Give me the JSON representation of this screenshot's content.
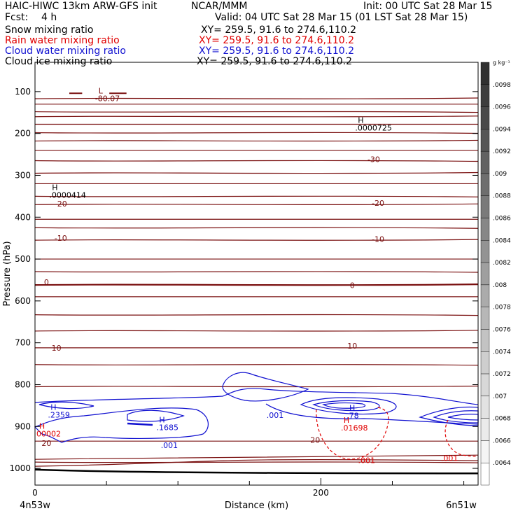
{
  "header": {
    "model": "HAIC-HIWC 13km ARW-GFS init",
    "org": "NCAR/MMM",
    "init": "Init: 00 UTC Sat 28 Mar 15",
    "fcst_label": "Fcst:",
    "fcst_value": "4 h",
    "valid": "Valid: 04 UTC Sat 28 Mar 15 (01 LST Sat 28 Mar 15)"
  },
  "fields": [
    {
      "name": "Snow mixing ratio",
      "xy": "XY= 259.5, 91.6 to 274.6,110.2",
      "color": "#000000"
    },
    {
      "name": "Rain water mixing ratio",
      "xy": "XY= 259.5, 91.6 to 274.6,110.2",
      "color": "#e00000"
    },
    {
      "name": "Cloud water mixing ratio",
      "xy": "XY= 259.5, 91.6 to 274.6,110.2",
      "color": "#1010d0"
    },
    {
      "name": "Cloud ice mixing ratio",
      "xy": "XY= 259.5, 91.6 to 274.6,110.2",
      "color": "#000000"
    }
  ],
  "chart_data": {
    "type": "contour",
    "xlabel": "Distance (km)",
    "ylabel": "Pressure (hPa)",
    "x_ticks": [
      0,
      200
    ],
    "x_minor_step": 50,
    "xlim": [
      0,
      310
    ],
    "y_ticks": [
      100,
      200,
      300,
      400,
      500,
      600,
      700,
      800,
      900,
      1000
    ],
    "ylim": [
      1040,
      30
    ],
    "x_endpoints": {
      "left": "4n53w",
      "right": "6n51w"
    },
    "temperature_contours": {
      "color": "#7a1010",
      "levels": [
        {
          "p": 117,
          "label": ""
        },
        {
          "p": 130,
          "label": ""
        },
        {
          "p": 148,
          "label": ""
        },
        {
          "p": 160,
          "label": ""
        },
        {
          "p": 178,
          "label": ""
        },
        {
          "p": 198,
          "label": ""
        },
        {
          "p": 218,
          "label": ""
        },
        {
          "p": 240,
          "label": ""
        },
        {
          "p": 265,
          "label": "-30"
        },
        {
          "p": 295,
          "label": ""
        },
        {
          "p": 320,
          "label": ""
        },
        {
          "p": 350,
          "label": ""
        },
        {
          "p": 370,
          "label": "-20"
        },
        {
          "p": 405,
          "label": ""
        },
        {
          "p": 425,
          "label": ""
        },
        {
          "p": 455,
          "label": "-10"
        },
        {
          "p": 500,
          "label": ""
        },
        {
          "p": 530,
          "label": ""
        },
        {
          "p": 562,
          "label": "0"
        },
        {
          "p": 590,
          "label": ""
        },
        {
          "p": 633,
          "label": ""
        },
        {
          "p": 672,
          "label": ""
        },
        {
          "p": 712,
          "label": "10"
        },
        {
          "p": 752,
          "label": ""
        },
        {
          "p": 805,
          "label": ""
        },
        {
          "p": 935,
          "label": "20"
        },
        {
          "p": 985,
          "label": ""
        }
      ],
      "labels": [
        {
          "text": "-30",
          "x": 237,
          "p": 262
        },
        {
          "text": "-20",
          "x": 18,
          "p": 368
        },
        {
          "text": "-20",
          "x": 240,
          "p": 366
        },
        {
          "text": "-10",
          "x": 18,
          "p": 450
        },
        {
          "text": "-10",
          "x": 240,
          "p": 452
        },
        {
          "text": "0",
          "x": 8,
          "p": 555
        },
        {
          "text": "0",
          "x": 222,
          "p": 563
        },
        {
          "text": "10",
          "x": 15,
          "p": 712
        },
        {
          "text": "10",
          "x": 222,
          "p": 707
        },
        {
          "text": "20",
          "x": 8,
          "p": 940
        },
        {
          "text": "20",
          "x": 196,
          "p": 932
        }
      ]
    },
    "cloud_water": {
      "color": "#1010d0",
      "labels": [
        {
          "text": ".001",
          "x": 168,
          "p": 873
        },
        {
          "text": ".001",
          "x": 94,
          "p": 945
        }
      ]
    },
    "rain_water": {
      "color": "#e00000",
      "labels": [
        {
          "text": ".001",
          "x": 232,
          "p": 981
        },
        {
          "text": ".001",
          "x": 290,
          "p": 976
        }
      ]
    },
    "extrema": [
      {
        "kind": "L",
        "value": "-80.07",
        "x": 42,
        "p": 104,
        "color": "#7a1010"
      },
      {
        "kind": "H",
        "value": ".0000725",
        "x": 224,
        "p": 175,
        "color": "#000000"
      },
      {
        "kind": "H",
        "value": ".0000414",
        "x": 10,
        "p": 335,
        "color": "#000000"
      },
      {
        "kind": "H",
        "value": ".2359",
        "x": 9,
        "p": 860,
        "color": "#1010d0"
      },
      {
        "kind": "H",
        "value": ".1685",
        "x": 85,
        "p": 890,
        "color": "#1010d0"
      },
      {
        "kind": "H",
        "value": ".78",
        "x": 218,
        "p": 862,
        "color": "#1010d0"
      },
      {
        "kind": "H",
        "value": "00002",
        "x": 1,
        "p": 905,
        "color": "#e00000"
      },
      {
        "kind": "H",
        "value": ".01698",
        "x": 214,
        "p": 891,
        "color": "#e00000"
      }
    ],
    "colorbar": {
      "unit": "g kg⁻¹",
      "ticks": [
        ".0098",
        ".0096",
        ".0094",
        ".0092",
        ".009",
        ".0088",
        ".0086",
        ".0084",
        ".0082",
        ".008",
        ".0078",
        ".0076",
        ".0074",
        ".0072",
        ".007",
        ".0068",
        ".0066",
        ".0064"
      ],
      "fills": [
        "#303030",
        "#3d3d3d",
        "#494949",
        "#565656",
        "#626262",
        "#6e6e6e",
        "#7a7a7a",
        "#878787",
        "#939393",
        "#9f9f9f",
        "#ababab",
        "#b7b7b7",
        "#c3c3c3",
        "#cecece",
        "#d8d8d8",
        "#e2e2e2",
        "#ebebeb",
        "#f4f4f4",
        "#ffffff"
      ]
    }
  }
}
